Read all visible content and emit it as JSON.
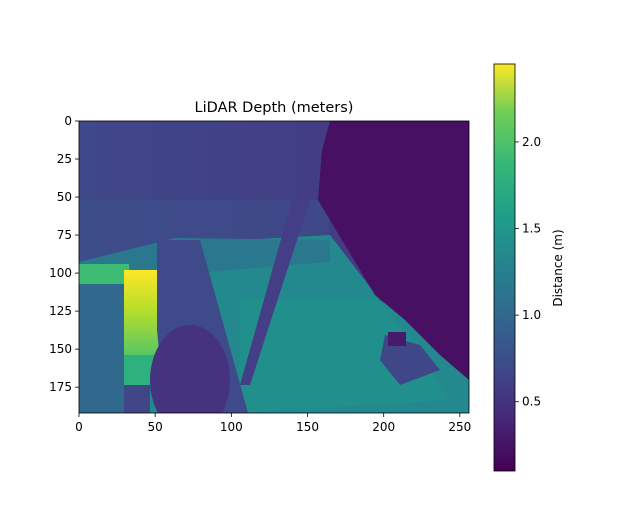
{
  "chart_data": {
    "type": "heatmap",
    "title": "LiDAR Depth (meters)",
    "xlim": [
      0,
      256
    ],
    "ylim": [
      192,
      0
    ],
    "x_ticks": [
      0,
      50,
      100,
      150,
      200,
      250
    ],
    "y_ticks": [
      0,
      25,
      50,
      75,
      100,
      125,
      150,
      175
    ],
    "colormap": "viridis",
    "colorbar": {
      "label": "Distance (m)",
      "range": [
        0.1,
        2.45
      ],
      "ticks": [
        0.5,
        1.0,
        1.5,
        2.0
      ],
      "tick_labels": [
        "0.5",
        "1.0",
        "1.5",
        "2.0"
      ]
    },
    "grid": false,
    "regions": [
      {
        "name": "background",
        "value": 0.55
      },
      {
        "name": "left-wall",
        "value": 0.95
      },
      {
        "name": "bright-patch",
        "value": 2.3
      },
      {
        "name": "lower-floor",
        "value": 1.4
      },
      {
        "name": "right-object",
        "value": 0.2
      }
    ]
  }
}
